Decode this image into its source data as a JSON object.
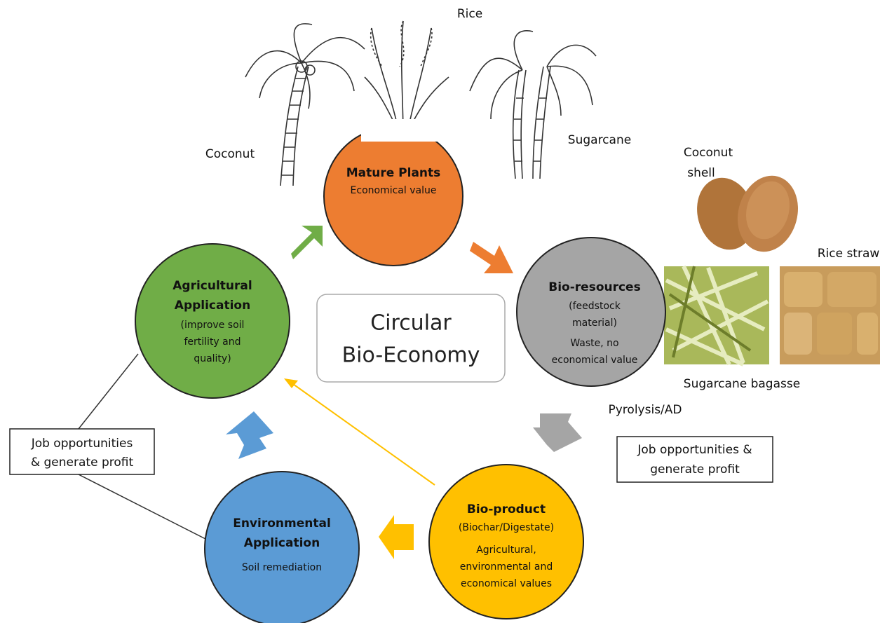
{
  "center": [
    "Circular",
    "Bio-Economy"
  ],
  "nodes": [
    {
      "title": [
        "Mature Plants"
      ],
      "body": [
        "Economical value"
      ]
    },
    {
      "title": [
        "Bio-resources"
      ],
      "body": [
        "(feedstock",
        "material)",
        "Waste, no",
        "economical value"
      ]
    },
    {
      "title": [
        "Bio-product"
      ],
      "body": [
        "(Biochar/Digestate)",
        "Agricultural,",
        "environmental and",
        "economical values"
      ]
    },
    {
      "title": [
        "Environmental",
        "Application"
      ],
      "body": [
        "Soil remediation"
      ]
    },
    {
      "title": [
        "Agricultural",
        "Application"
      ],
      "body": [
        "(improve soil",
        "fertility and",
        "quality)"
      ]
    }
  ],
  "labels": {
    "rice": "Rice",
    "coconut": "Coconut",
    "sugarcane": "Sugarcane",
    "coconut_shell": [
      "Coconut",
      "shell"
    ],
    "rice_straw": "Rice straw",
    "sugarcane_bagasse": "Sugarcane bagasse",
    "process": "Pyrolysis/AD"
  },
  "boxes": [
    [
      "Job opportunities",
      "& generate profit"
    ],
    [
      "Job opportunities &",
      "generate profit"
    ]
  ]
}
